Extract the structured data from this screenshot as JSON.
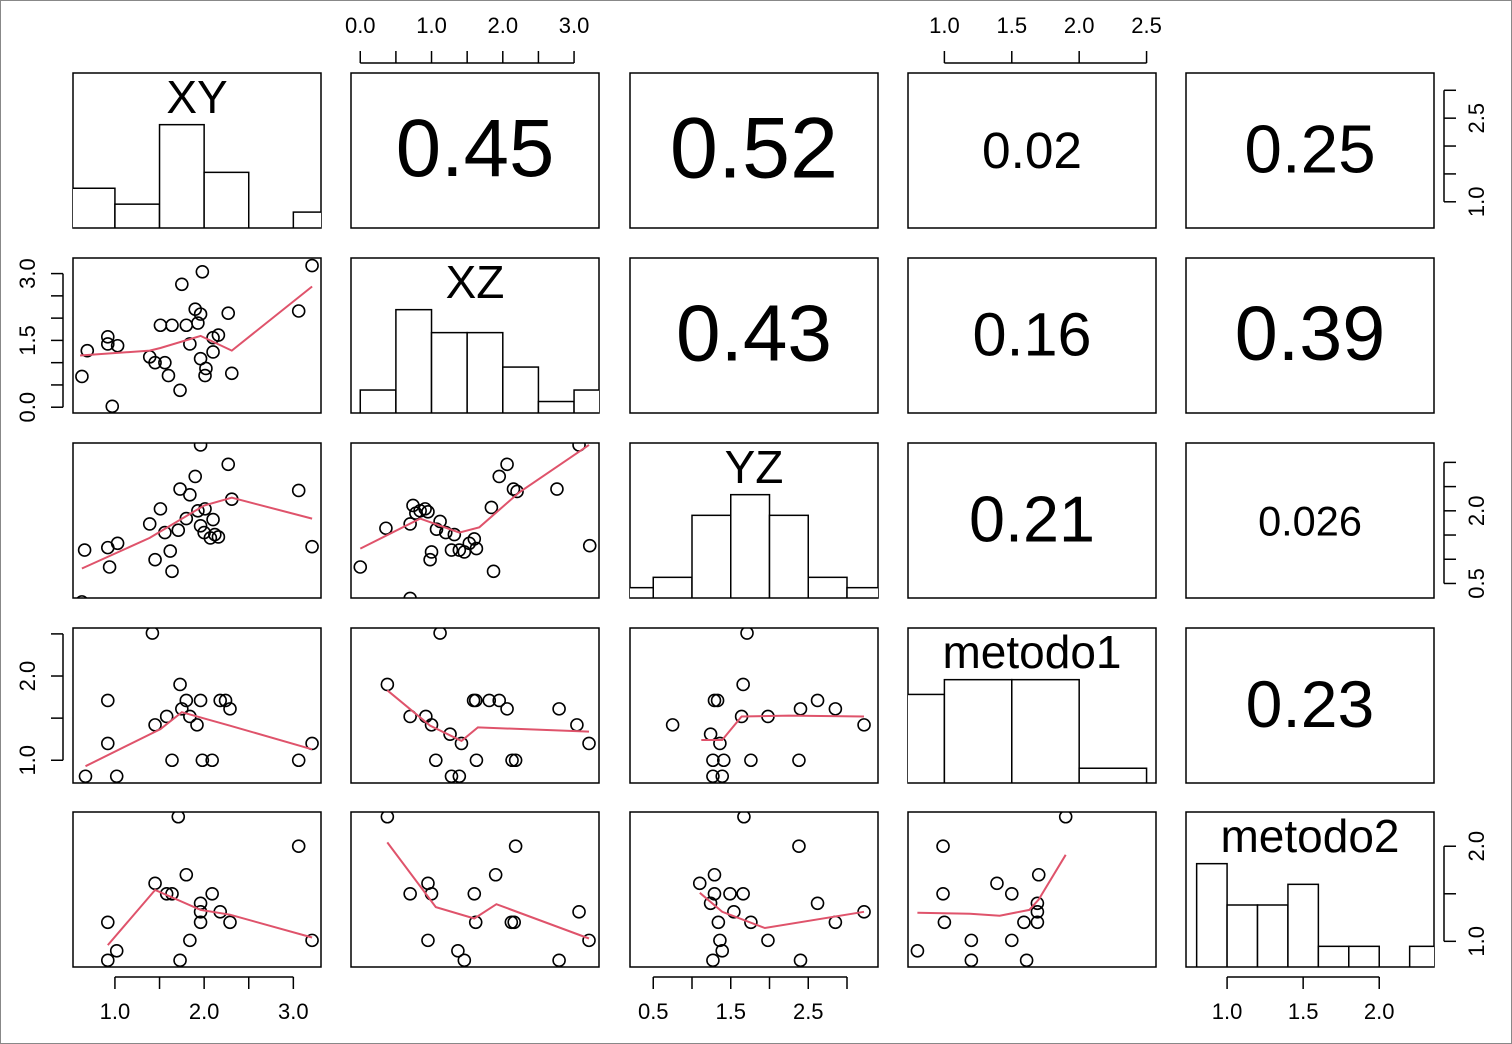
{
  "chart_data": {
    "type": "pairs",
    "point_color": "#000000",
    "smooth_color": "#df536b",
    "vars": [
      {
        "name": "XY",
        "lim": [
          0.53,
          3.31
        ],
        "hist": {
          "bins": [
            0.5,
            1,
            1.5,
            2,
            2.5,
            3,
            3.5
          ],
          "counts": [
            5,
            3,
            13,
            7,
            0,
            2
          ]
        }
      },
      {
        "name": "XZ",
        "lim": [
          -0.13,
          3.35
        ],
        "hist": {
          "bins": [
            0,
            0.5,
            1,
            1.5,
            2,
            2.5,
            3,
            3.5
          ],
          "counts": [
            2,
            9,
            7,
            7,
            4,
            1,
            2
          ]
        }
      },
      {
        "name": "YZ",
        "lim": [
          0.2,
          3.4
        ],
        "hist": {
          "bins": [
            0,
            0.5,
            1,
            1.5,
            2,
            2.5,
            3,
            3.5
          ],
          "counts": [
            1,
            2,
            8,
            10,
            8,
            2,
            1
          ]
        }
      },
      {
        "name": "metodo1",
        "lim": [
          0.73,
          2.57
        ],
        "hist": {
          "bins": [
            0.5,
            1,
            1.5,
            2,
            2.5
          ],
          "counts": [
            6,
            7,
            7,
            1
          ]
        }
      },
      {
        "name": "metodo2",
        "lim": [
          0.73,
          2.36
        ],
        "hist": {
          "bins": [
            0.8,
            1.0,
            1.2,
            1.4,
            1.6,
            1.8,
            2.0,
            2.2,
            2.4
          ],
          "counts": [
            5,
            3,
            3,
            4,
            1,
            1,
            0,
            1
          ]
        }
      }
    ],
    "axes": [
      {
        "var": 0,
        "side": "bottom",
        "ticks": [
          {
            "value": 1,
            "label": "1.0"
          },
          {
            "value": 1.5,
            "label": null
          },
          {
            "value": 2,
            "label": "2.0"
          },
          {
            "value": 2.5,
            "label": null
          },
          {
            "value": 3,
            "label": "3.0"
          }
        ]
      },
      {
        "var": 1,
        "side": "top",
        "ticks": [
          {
            "value": 0,
            "label": "0.0"
          },
          {
            "value": 0.5,
            "label": null
          },
          {
            "value": 1,
            "label": "1.0"
          },
          {
            "value": 1.5,
            "label": null
          },
          {
            "value": 2,
            "label": "2.0"
          },
          {
            "value": 2.5,
            "label": null
          },
          {
            "value": 3,
            "label": "3.0"
          }
        ]
      },
      {
        "var": 2,
        "side": "bottom",
        "ticks": [
          0.5,
          {
            "value": 1,
            "label": null
          },
          1.5,
          {
            "value": 2,
            "label": null
          },
          2.5,
          {
            "value": 3,
            "label": null
          }
        ]
      },
      {
        "var": 3,
        "side": "top",
        "ticks": [
          {
            "value": 1,
            "label": "1.0"
          },
          1.5,
          {
            "value": 2,
            "label": "2.0"
          },
          2.5
        ]
      },
      {
        "var": 4,
        "side": "bottom",
        "ticks": [
          {
            "value": 1,
            "label": "1.0"
          },
          1.5,
          {
            "value": 2,
            "label": "2.0"
          }
        ]
      },
      {
        "var": 0,
        "side": "right",
        "ticks": [
          {
            "value": 1,
            "label": "1.0"
          },
          {
            "value": 1.5,
            "label": null
          },
          {
            "value": 2,
            "label": null
          },
          2.5,
          {
            "value": 3,
            "label": null
          }
        ]
      },
      {
        "var": 1,
        "side": "left",
        "ticks": [
          {
            "value": 0,
            "label": "0.0"
          },
          {
            "value": 0.5,
            "label": null
          },
          {
            "value": 1,
            "label": null
          },
          1.5,
          {
            "value": 2,
            "label": null
          },
          {
            "value": 2.5,
            "label": null
          },
          {
            "value": 3,
            "label": "3.0"
          }
        ]
      },
      {
        "var": 2,
        "side": "right",
        "ticks": [
          0.5,
          {
            "value": 1,
            "label": null
          },
          {
            "value": 1.5,
            "label": null
          },
          {
            "value": 2,
            "label": "2.0"
          },
          {
            "value": 2.5,
            "label": null
          },
          {
            "value": 3,
            "label": null
          }
        ]
      },
      {
        "var": 3,
        "side": "left",
        "ticks": [
          {
            "value": 1,
            "label": "1.0"
          },
          {
            "value": 1.5,
            "label": null
          },
          {
            "value": 2,
            "label": "2.0"
          },
          {
            "value": 2.5,
            "label": null
          }
        ]
      },
      {
        "var": 4,
        "side": "right",
        "ticks": [
          {
            "value": 1,
            "label": "1.0"
          },
          {
            "value": 1.5,
            "label": null
          },
          {
            "value": 2,
            "label": "2.0"
          }
        ]
      }
    ],
    "correlations": [
      {
        "row": 0,
        "col": 1,
        "value": 0.45
      },
      {
        "row": 0,
        "col": 2,
        "value": 0.52
      },
      {
        "row": 0,
        "col": 3,
        "value": 0.02
      },
      {
        "row": 0,
        "col": 4,
        "value": 0.25
      },
      {
        "row": 1,
        "col": 2,
        "value": 0.43
      },
      {
        "row": 1,
        "col": 3,
        "value": 0.16
      },
      {
        "row": 1,
        "col": 4,
        "value": 0.39
      },
      {
        "row": 2,
        "col": 3,
        "value": 0.21
      },
      {
        "row": 2,
        "col": 4,
        "value": 0.026
      },
      {
        "row": 3,
        "col": 4,
        "value": 0.23
      }
    ],
    "panels": [
      {
        "row": 1,
        "col": 0,
        "x": [
          0.63,
          0.69,
          0.92,
          0.92,
          1.03,
          0.97,
          1.39,
          1.45,
          1.51,
          1.56,
          1.6,
          1.64,
          1.73,
          1.75,
          1.8,
          1.84,
          1.9,
          1.93,
          1.96,
          1.96,
          1.98,
          2.01,
          2.02,
          2.1,
          2.1,
          2.16,
          2.27,
          2.31,
          3.06,
          3.21
        ],
        "y": [
          0.69,
          1.27,
          1.58,
          1.42,
          1.38,
          0.02,
          1.13,
          1.0,
          1.84,
          1.0,
          0.71,
          1.84,
          0.38,
          2.76,
          1.84,
          1.42,
          2.2,
          1.89,
          2.09,
          1.09,
          3.04,
          0.71,
          0.87,
          1.24,
          1.56,
          1.62,
          2.11,
          0.76,
          2.16,
          3.18
        ],
        "smooth": {
          "x": [
            0.61,
            1.39,
            1.51,
            1.96,
            2.31,
            3.21
          ],
          "y": [
            1.16,
            1.27,
            1.33,
            1.6,
            1.27,
            2.71
          ]
        }
      },
      {
        "row": 2,
        "col": 0,
        "x": [
          0.63,
          0.66,
          0.92,
          0.94,
          1.03,
          1.39,
          1.45,
          1.51,
          1.56,
          1.62,
          1.64,
          1.71,
          1.73,
          1.8,
          1.84,
          1.9,
          1.93,
          1.96,
          1.96,
          2.0,
          2.01,
          2.07,
          2.1,
          2.12,
          2.16,
          2.27,
          2.31,
          3.06,
          3.21
        ],
        "y": [
          0.12,
          1.19,
          1.24,
          0.84,
          1.33,
          1.73,
          0.99,
          2.04,
          1.55,
          1.17,
          0.75,
          1.6,
          2.45,
          1.84,
          2.33,
          2.71,
          2.0,
          3.36,
          1.69,
          1.55,
          2.04,
          1.44,
          1.82,
          1.51,
          1.46,
          2.96,
          2.24,
          2.42,
          1.26
        ],
        "smooth": {
          "x": [
            0.63,
            1.39,
            2.0,
            2.31,
            3.21
          ],
          "y": [
            0.81,
            1.44,
            2.11,
            2.27,
            1.84
          ]
        }
      },
      {
        "row": 3,
        "col": 0,
        "x": [
          0.67,
          0.92,
          0.92,
          1.02,
          1.42,
          1.45,
          1.58,
          1.64,
          1.73,
          1.75,
          1.8,
          1.84,
          1.92,
          1.96,
          1.98,
          2.09,
          2.18,
          2.24,
          2.29,
          3.06,
          3.21
        ],
        "y": [
          0.81,
          1.71,
          1.2,
          0.81,
          2.51,
          1.42,
          1.52,
          1.0,
          1.9,
          1.61,
          1.71,
          1.52,
          1.42,
          1.71,
          1.0,
          1.0,
          1.71,
          1.71,
          1.61,
          1.0,
          1.2
        ],
        "smooth": {
          "x": [
            0.67,
            1.51,
            1.75,
            2.29,
            3.21
          ],
          "y": [
            0.93,
            1.37,
            1.57,
            1.41,
            1.13
          ]
        }
      },
      {
        "row": 4,
        "col": 0,
        "x": [
          0.92,
          0.92,
          1.02,
          1.45,
          1.58,
          1.64,
          1.71,
          1.73,
          1.8,
          1.84,
          1.96,
          1.96,
          1.96,
          2.09,
          2.18,
          2.29,
          3.06,
          3.21
        ],
        "y": [
          0.8,
          1.2,
          0.9,
          1.61,
          1.5,
          1.5,
          2.31,
          0.8,
          1.7,
          1.01,
          1.4,
          1.31,
          1.2,
          1.5,
          1.31,
          1.2,
          2.0,
          1.01
        ],
        "smooth": {
          "x": [
            0.92,
            1.45,
            1.96,
            2.29,
            3.21
          ],
          "y": [
            0.96,
            1.54,
            1.33,
            1.28,
            1.04
          ]
        }
      },
      {
        "row": 2,
        "col": 1,
        "x": [
          0,
          0.36,
          0.7,
          0.7,
          0.74,
          0.78,
          0.84,
          0.91,
          0.95,
          0.98,
          1.0,
          1.07,
          1.12,
          1.2,
          1.28,
          1.32,
          1.39,
          1.46,
          1.53,
          1.6,
          1.63,
          1.84,
          1.87,
          1.95,
          2.06,
          2.15,
          2.2,
          2.76,
          3.07,
          3.22
        ],
        "y": [
          0.84,
          1.64,
          0.19,
          1.73,
          2.11,
          1.95,
          2.0,
          2.04,
          1.98,
          0.99,
          1.15,
          1.62,
          1.78,
          1.55,
          1.19,
          1.51,
          1.19,
          1.15,
          1.33,
          1.42,
          1.22,
          2.07,
          0.75,
          2.71,
          2.96,
          2.45,
          2.4,
          2.45,
          3.36,
          1.28
        ],
        "smooth": {
          "x": [
            0,
            0.84,
            1.39,
            1.67,
            2.23,
            3.21
          ],
          "y": [
            1.22,
            1.84,
            1.55,
            1.66,
            2.38,
            3.36
          ]
        }
      },
      {
        "row": 3,
        "col": 1,
        "x": [
          0.38,
          0.7,
          0.92,
          1.0,
          1.06,
          1.12,
          1.26,
          1.28,
          1.39,
          1.42,
          1.63,
          1.59,
          1.62,
          1.81,
          1.95,
          2.06,
          2.13,
          2.18,
          2.79,
          3.04,
          3.21
        ],
        "y": [
          1.9,
          1.52,
          1.52,
          1.42,
          1.0,
          2.51,
          1.31,
          0.81,
          0.81,
          1.2,
          1.0,
          1.71,
          1.71,
          1.71,
          1.71,
          1.61,
          1.0,
          1.0,
          1.61,
          1.42,
          1.2
        ],
        "smooth": {
          "x": [
            0.38,
            0.98,
            1.42,
            1.65,
            3.21
          ],
          "y": [
            1.83,
            1.41,
            1.23,
            1.39,
            1.34
          ]
        }
      },
      {
        "row": 4,
        "col": 1,
        "x": [
          0.38,
          0.7,
          0.95,
          1.0,
          0.95,
          1.37,
          1.46,
          1.6,
          1.62,
          1.9,
          2.12,
          2.16,
          2.18,
          2.79,
          3.07,
          3.21
        ],
        "y": [
          2.31,
          1.5,
          1.61,
          1.5,
          1.01,
          0.9,
          0.8,
          1.5,
          1.2,
          1.7,
          1.2,
          1.2,
          2.0,
          0.8,
          1.31,
          1.01
        ],
        "smooth": {
          "x": [
            0.38,
            1.06,
            1.6,
            1.91,
            3.21
          ],
          "y": [
            2.04,
            1.36,
            1.24,
            1.39,
            1.03
          ]
        }
      },
      {
        "row": 3,
        "col": 2,
        "x": [
          0.75,
          1.24,
          1.27,
          1.29,
          1.33,
          1.36,
          1.27,
          1.39,
          1.41,
          1.71,
          1.64,
          1.66,
          1.76,
          1.98,
          2.38,
          2.4,
          2.62,
          2.85,
          3.22
        ],
        "y": [
          1.42,
          1.31,
          1.0,
          1.71,
          1.71,
          1.2,
          0.81,
          0.81,
          1.0,
          2.51,
          1.52,
          1.9,
          1.0,
          1.52,
          1.0,
          1.61,
          1.71,
          1.61,
          1.42
        ],
        "smooth": {
          "x": [
            1.12,
            1.39,
            1.64,
            2.25,
            3.22
          ],
          "y": [
            1.24,
            1.24,
            1.52,
            1.53,
            1.52
          ]
        }
      },
      {
        "row": 4,
        "col": 2,
        "x": [
          1.1,
          1.24,
          1.29,
          1.29,
          1.34,
          1.36,
          1.39,
          1.49,
          1.54,
          1.66,
          1.67,
          1.27,
          1.76,
          1.98,
          2.38,
          2.4,
          2.62,
          2.85,
          3.22
        ],
        "y": [
          1.61,
          1.4,
          1.7,
          1.5,
          1.2,
          1.01,
          0.9,
          1.5,
          1.31,
          1.5,
          2.31,
          0.8,
          1.2,
          1.01,
          2.0,
          0.8,
          1.4,
          1.2,
          1.31
        ],
        "smooth": {
          "x": [
            1.1,
            1.39,
            1.94,
            3.22
          ],
          "y": [
            1.51,
            1.31,
            1.14,
            1.31
          ]
        }
      },
      {
        "row": 4,
        "col": 3,
        "x": [
          0.8,
          0.99,
          0.99,
          1.0,
          1.2,
          1.2,
          1.39,
          1.5,
          1.5,
          1.59,
          1.61,
          1.69,
          1.69,
          1.69,
          1.7,
          1.9
        ],
        "y": [
          0.9,
          2.0,
          1.5,
          1.2,
          1.01,
          0.8,
          1.61,
          1.5,
          1.01,
          1.2,
          0.8,
          1.2,
          1.4,
          1.31,
          1.7,
          2.31
        ],
        "smooth": {
          "x": [
            0.8,
            1.19,
            1.41,
            1.63,
            1.7,
            1.9
          ],
          "y": [
            1.3,
            1.29,
            1.27,
            1.33,
            1.44,
            1.91
          ]
        }
      }
    ]
  }
}
